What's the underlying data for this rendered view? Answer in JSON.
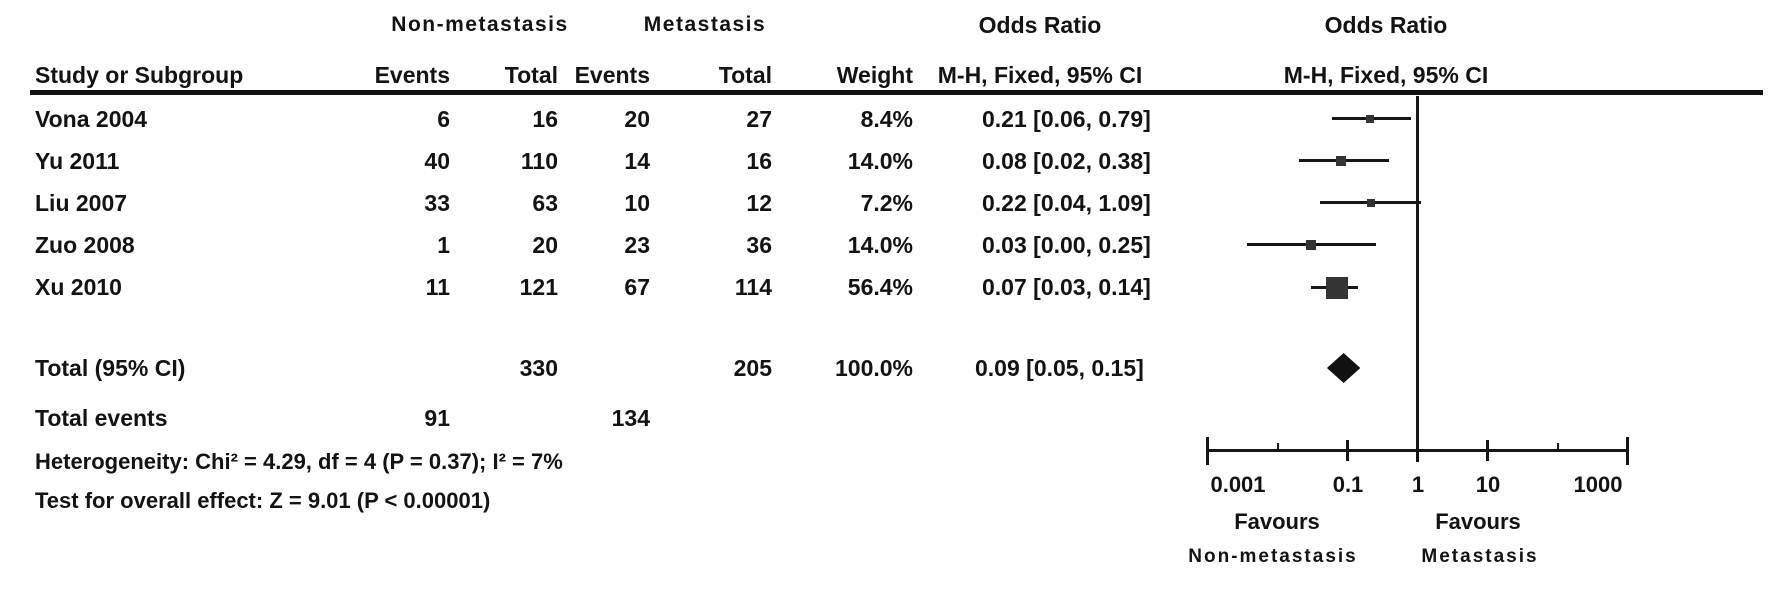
{
  "table": {
    "group1_header": "Non-metastasis",
    "group2_header": "Metastasis",
    "col_study": "Study or Subgroup",
    "col_events1": "Events",
    "col_total1": "Total",
    "col_events2": "Events",
    "col_total2": "Total",
    "col_weight": "Weight",
    "or_col_header_line1": "Odds Ratio",
    "or_col_header_line2": "M-H, Fixed, 95% CI",
    "plot_col_header_line1": "Odds Ratio",
    "plot_col_header_line2": "M-H, Fixed, 95% CI",
    "studies": [
      {
        "label": "Vona 2004",
        "e1": "6",
        "t1": "16",
        "e2": "20",
        "t2": "27",
        "weight": "8.4%",
        "or_text": "0.21 [0.06, 0.79]"
      },
      {
        "label": "Yu 2011",
        "e1": "40",
        "t1": "110",
        "e2": "14",
        "t2": "16",
        "weight": "14.0%",
        "or_text": "0.08 [0.02, 0.38]"
      },
      {
        "label": "Liu 2007",
        "e1": "33",
        "t1": "63",
        "e2": "10",
        "t2": "12",
        "weight": "7.2%",
        "or_text": "0.22 [0.04, 1.09]"
      },
      {
        "label": "Zuo 2008",
        "e1": "1",
        "t1": "20",
        "e2": "23",
        "t2": "36",
        "weight": "14.0%",
        "or_text": "0.03 [0.00, 0.25]"
      },
      {
        "label": "Xu 2010",
        "e1": "11",
        "t1": "121",
        "e2": "67",
        "t2": "114",
        "weight": "56.4%",
        "or_text": "0.07 [0.03, 0.14]"
      }
    ],
    "total": {
      "label": "Total (95% CI)",
      "t1": "330",
      "t2": "205",
      "weight": "100.0%",
      "or_text": "0.09 [0.05, 0.15]",
      "events_label": "Total events",
      "e1": "91",
      "e2": "134"
    },
    "stats": {
      "heterogeneity": "Heterogeneity: Chi² = 4.29, df = 4 (P = 0.37); I² = 7%",
      "overall_effect": "Test for overall effect: Z = 9.01 (P < 0.00001)"
    }
  },
  "chart_data": {
    "type": "forest",
    "effect_measure": "Odds Ratio (M-H, Fixed, 95% CI)",
    "x_scale": "log10",
    "xlim": [
      0.001,
      1000
    ],
    "x_ticks": [
      0.001,
      0.1,
      1,
      10,
      1000
    ],
    "axis": {
      "tick_labels": [
        "0.001",
        "0.1",
        "1",
        "10",
        "1000"
      ],
      "favours_left_line1": "Favours",
      "favours_left_line2": "Non-metastasis",
      "favours_right_line1": "Favours",
      "favours_right_line2": "Metastasis"
    },
    "studies": [
      {
        "name": "Vona 2004",
        "or": 0.21,
        "ci": [
          0.06,
          0.79
        ],
        "weight_pct": 8.4
      },
      {
        "name": "Yu 2011",
        "or": 0.08,
        "ci": [
          0.02,
          0.38
        ],
        "weight_pct": 14.0
      },
      {
        "name": "Liu 2007",
        "or": 0.22,
        "ci": [
          0.04,
          1.09
        ],
        "weight_pct": 7.2
      },
      {
        "name": "Zuo 2008",
        "or": 0.03,
        "ci": [
          0.0,
          0.25
        ],
        "weight_pct": 14.0
      },
      {
        "name": "Xu 2010",
        "or": 0.07,
        "ci": [
          0.03,
          0.14
        ],
        "weight_pct": 56.4
      }
    ],
    "total": {
      "name": "Total (95% CI)",
      "or": 0.09,
      "ci": [
        0.05,
        0.15
      ]
    },
    "no_effect_line": 1,
    "marker_color": "#343434",
    "line_color": "#161616"
  }
}
